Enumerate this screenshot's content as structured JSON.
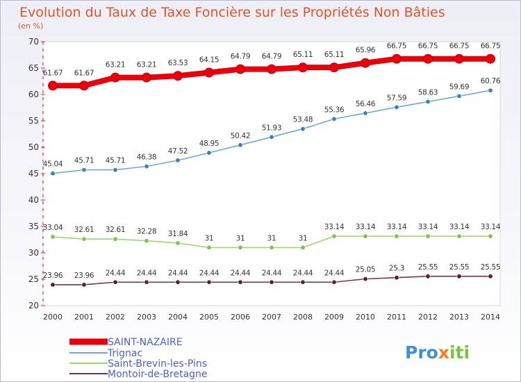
{
  "chart_data": {
    "type": "line",
    "title": "Evolution du Taux de Taxe Foncière sur les Propriétés Non Bâties",
    "subtitle": "(en %)",
    "xlabel": "",
    "ylabel": "(en %)",
    "ylim": [
      20,
      70
    ],
    "yticks": [
      20,
      25,
      30,
      35,
      40,
      45,
      50,
      55,
      60,
      65,
      70
    ],
    "x": [
      2000,
      2001,
      2002,
      2003,
      2004,
      2005,
      2006,
      2007,
      2008,
      2009,
      2010,
      2011,
      2012,
      2013,
      2014
    ],
    "legend_position": "bottom-left",
    "series": [
      {
        "name": "SAINT-NAZAIRE",
        "color": "#e8000b",
        "values": [
          61.67,
          61.67,
          63.21,
          63.21,
          63.53,
          64.15,
          64.79,
          64.79,
          65.11,
          65.11,
          65.96,
          66.75,
          66.75,
          66.75,
          66.75
        ],
        "labels": [
          "61.67",
          "61.67",
          "63.21",
          "63.21",
          "63.53",
          "64.15",
          "64.79",
          "64.79",
          "65.11",
          "65.11",
          "65.96",
          "66.75",
          "66.75",
          "66.75",
          "66.75"
        ]
      },
      {
        "name": "Trignac",
        "color": "#6fa8dc",
        "marker": "#3a7fc0",
        "values": [
          45.04,
          45.71,
          45.71,
          46.38,
          47.52,
          48.95,
          50.42,
          51.93,
          53.48,
          55.36,
          56.46,
          57.59,
          58.63,
          59.69,
          60.76
        ],
        "labels": [
          "45.04",
          "45.71",
          "45.71",
          "46.38",
          "47.52",
          "48.95",
          "50.42",
          "51.93",
          "53.48",
          "55.36",
          "56.46",
          "57.59",
          "58.63",
          "59.69",
          "60.76"
        ]
      },
      {
        "name": "Saint-Brevin-les-Pins",
        "color": "#9cd86b",
        "marker": "#7bc448",
        "values": [
          33.04,
          32.61,
          32.61,
          32.28,
          31.84,
          31,
          31,
          31,
          31,
          33.14,
          33.14,
          33.14,
          33.14,
          33.14,
          33.14
        ],
        "labels": [
          "33.04",
          "32.61",
          "32.61",
          "32.28",
          "31.84",
          "31",
          "31",
          "31",
          "31",
          "33.14",
          "33.14",
          "33.14",
          "33.14",
          "33.14",
          "33.14"
        ]
      },
      {
        "name": "Montoir-de-Bretagne",
        "color": "#7a3340",
        "marker": "#5e1c26",
        "values": [
          23.96,
          23.96,
          24.44,
          24.44,
          24.44,
          24.44,
          24.44,
          24.44,
          24.44,
          24.44,
          25.05,
          25.3,
          25.55,
          25.55,
          25.55
        ],
        "labels": [
          "23.96",
          "23.96",
          "24.44",
          "24.44",
          "24.44",
          "24.44",
          "24.44",
          "24.44",
          "24.44",
          "24.44",
          "25.05",
          "25.3",
          "25.55",
          "25.55",
          "25.55"
        ]
      }
    ]
  },
  "branding": {
    "parts": [
      {
        "text": "Pro",
        "color": "#3e8fd8"
      },
      {
        "text": "x",
        "color": "#ff7a1a"
      },
      {
        "text": "iti",
        "color": "#7cc242"
      }
    ]
  }
}
